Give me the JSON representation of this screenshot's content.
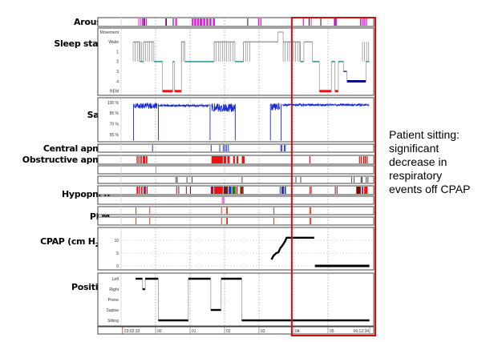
{
  "chart_data": {
    "type": "hypnogram",
    "title": "",
    "time_axis": {
      "unit": "hours after 23:00",
      "range": [
        0.043,
        7.21
      ],
      "ticks": [
        {
          "h": 0.043,
          "label": "23:02:33",
          "color": "#cc0000"
        },
        {
          "h": 1,
          "label": "00"
        },
        {
          "h": 2,
          "label": "01"
        },
        {
          "h": 3,
          "label": "02"
        },
        {
          "h": 4,
          "label": "03"
        },
        {
          "h": 5,
          "label": "04"
        },
        {
          "h": 6,
          "label": "05"
        },
        {
          "h": 7.21,
          "label": "06:12:34"
        }
      ]
    },
    "track_labels": {
      "arousal": "Arousal",
      "sleep_stage": "Sleep stage",
      "sao2": "SaO",
      "sao2_sub": "2",
      "central_apnea": "Central apnea",
      "obstructive_apnea": "Obstructive apnea",
      "hypopnea": "Hypopnea",
      "plm": "PLM",
      "cpap": "CPAP (cm H",
      "cpap_sub": "2",
      "cpap_end": "O)",
      "position": "Position"
    },
    "arousal": {
      "color": "#e020e0",
      "events": [
        [
          0.5,
          0.52
        ],
        [
          0.55,
          0.57
        ],
        [
          0.6,
          0.63
        ],
        [
          0.64,
          0.66
        ],
        [
          0.67,
          0.7
        ],
        [
          0.72,
          0.74
        ],
        [
          1.28,
          1.31
        ],
        [
          1.57,
          1.62
        ],
        [
          2.05,
          2.1
        ],
        [
          2.12,
          2.18
        ],
        [
          2.2,
          2.26
        ],
        [
          2.28,
          2.36
        ],
        [
          2.38,
          2.44
        ],
        [
          2.47,
          2.53
        ],
        [
          2.56,
          2.62
        ],
        [
          2.66,
          2.72
        ],
        [
          3.97,
          4.01
        ],
        [
          4.04,
          4.07
        ],
        [
          5.27,
          5.3
        ],
        [
          5.5,
          5.52
        ],
        [
          6.17,
          6.2
        ],
        [
          6.23,
          6.26
        ],
        [
          6.93,
          6.97
        ],
        [
          7.0,
          7.03
        ],
        [
          7.05,
          7.08
        ],
        [
          7.1,
          7.13
        ]
      ],
      "dark_events": [
        0.65,
        1.3,
        1.5,
        3.66,
        5.44,
        5.78,
        6.2
      ]
    },
    "sleep_stage": {
      "levels": [
        "Movement",
        "Wake",
        "1",
        "2",
        "3",
        "4",
        "REM"
      ],
      "segments": [
        {
          "from": 0.35,
          "to": 0.55,
          "stage": "Wake"
        },
        {
          "from": 0.55,
          "to": 0.65,
          "stage": "2"
        },
        {
          "from": 0.65,
          "to": 0.95,
          "stage": "Wake"
        },
        {
          "from": 0.95,
          "to": 1.05,
          "stage": "2"
        },
        {
          "from": 1.05,
          "to": 1.2,
          "stage": "2"
        },
        {
          "from": 1.2,
          "to": 1.5,
          "stage": "REM"
        },
        {
          "from": 1.5,
          "to": 1.55,
          "stage": "2"
        },
        {
          "from": 1.55,
          "to": 1.75,
          "stage": "REM"
        },
        {
          "from": 1.75,
          "to": 1.85,
          "stage": "Wake"
        },
        {
          "from": 1.85,
          "to": 2.7,
          "stage": "2"
        },
        {
          "from": 2.7,
          "to": 3.3,
          "stage": "Wake"
        },
        {
          "from": 3.3,
          "to": 3.55,
          "stage": "2"
        },
        {
          "from": 3.55,
          "to": 4.55,
          "stage": "Wake"
        },
        {
          "from": 4.55,
          "to": 4.7,
          "stage": "Movement"
        },
        {
          "from": 4.7,
          "to": 5.2,
          "stage": "Wake"
        },
        {
          "from": 5.2,
          "to": 5.3,
          "stage": "2"
        },
        {
          "from": 5.3,
          "to": 5.55,
          "stage": "Wake"
        },
        {
          "from": 5.55,
          "to": 5.75,
          "stage": "2"
        },
        {
          "from": 5.75,
          "to": 6.1,
          "stage": "REM"
        },
        {
          "from": 6.1,
          "to": 6.2,
          "stage": "2"
        },
        {
          "from": 6.2,
          "to": 6.3,
          "stage": "REM"
        },
        {
          "from": 6.3,
          "to": 6.45,
          "stage": "2"
        },
        {
          "from": 6.45,
          "to": 6.55,
          "stage": "3"
        },
        {
          "from": 6.55,
          "to": 7.1,
          "stage": "4"
        },
        {
          "from": 7.1,
          "to": 7.2,
          "stage": "2"
        }
      ],
      "stage_colors": {
        "Movement": "#aaaaaa",
        "Wake": "#999999",
        "1": "#2a6fc0",
        "2": "#158a8a",
        "3": "#1a1aa0",
        "4": "#0a0a80",
        "REM": "#ee1111"
      }
    },
    "sao2": {
      "ticks": [
        "100 %",
        "85 %",
        "70 %",
        "55 %"
      ],
      "tick_values": [
        100,
        85,
        70,
        55
      ],
      "range": [
        50,
        102
      ],
      "color": "#1a2ad0",
      "gaps": [
        [
          0.35,
          0.35
        ],
        [
          1.1,
          1.1
        ],
        [
          2.6,
          2.6
        ],
        [
          3.32,
          3.32
        ],
        [
          3.65,
          3.65
        ]
      ],
      "segments": [
        {
          "from": 0.38,
          "to": 1.05,
          "mean": 96,
          "noise": 4
        },
        {
          "from": 1.1,
          "to": 2.55,
          "mean": 96,
          "noise": 1.5
        },
        {
          "from": 2.62,
          "to": 3.3,
          "mean": 94,
          "noise": 6
        },
        {
          "from": 4.35,
          "to": 4.6,
          "mean": 95,
          "noise": 5
        },
        {
          "from": 4.68,
          "to": 7.2,
          "mean": 97,
          "noise": 1.5
        }
      ],
      "drops": [
        0.36,
        1.08,
        2.58,
        3.31,
        4.33,
        4.64
      ]
    },
    "central_apnea": {
      "color": "#2233cc",
      "events": [
        0.9,
        2.6,
        2.85,
        2.95,
        3.0,
        3.05,
        3.1,
        4.62,
        4.65,
        4.72,
        4.75
      ]
    },
    "obstructive_apnea": {
      "color": "#ee1111",
      "events": [
        [
          0.45,
          0.48
        ],
        [
          0.5,
          0.53
        ],
        [
          0.56,
          0.6
        ],
        [
          0.63,
          0.7
        ],
        [
          0.72,
          0.76
        ],
        [
          2.62,
          2.95
        ],
        [
          2.97,
          3.05
        ],
        [
          3.08,
          3.15
        ],
        [
          3.25,
          3.3
        ],
        [
          3.35,
          3.4
        ],
        [
          3.5,
          3.58
        ],
        [
          5.46,
          5.48
        ],
        [
          6.9,
          6.92
        ],
        [
          6.95,
          6.97
        ],
        [
          7.02,
          7.04
        ],
        [
          7.06,
          7.1
        ],
        [
          7.12,
          7.15
        ]
      ]
    },
    "extra_track_1": {
      "events": [
        1.0
      ]
    },
    "extra_track_2": {
      "color": "#3a1010",
      "events": [
        1.58,
        1.62,
        1.9,
        2.05,
        3.5,
        5.06,
        5.2,
        6.68,
        6.75,
        6.95,
        6.98,
        7.1,
        7.15
      ]
    },
    "hypopnea": {
      "colors": [
        "#ee1111",
        "#a01040",
        "#6a1a1a",
        "#b02060",
        "#2233cc",
        "#1a7a1a",
        "#8a3010",
        "#7a0a0a"
      ],
      "events": [
        {
          "from": 0.45,
          "to": 0.5,
          "c": 0
        },
        {
          "from": 0.52,
          "to": 0.55,
          "c": 1
        },
        {
          "from": 0.58,
          "to": 0.62,
          "c": 0
        },
        {
          "from": 0.65,
          "to": 0.72,
          "c": 3
        },
        {
          "from": 0.74,
          "to": 0.77,
          "c": 0
        },
        {
          "from": 1.6,
          "to": 1.62,
          "c": 2
        },
        {
          "from": 1.66,
          "to": 1.68,
          "c": 2
        },
        {
          "from": 1.88,
          "to": 1.9,
          "c": 2
        },
        {
          "from": 2.0,
          "to": 2.02,
          "c": 2
        },
        {
          "from": 2.6,
          "to": 2.68,
          "c": 1
        },
        {
          "from": 2.7,
          "to": 2.95,
          "c": 0
        },
        {
          "from": 2.97,
          "to": 3.1,
          "c": 2
        },
        {
          "from": 3.12,
          "to": 3.2,
          "c": 4
        },
        {
          "from": 3.22,
          "to": 3.32,
          "c": 5
        },
        {
          "from": 3.34,
          "to": 3.38,
          "c": 0
        },
        {
          "from": 3.45,
          "to": 3.55,
          "c": 6
        },
        {
          "from": 4.6,
          "to": 4.62,
          "c": 4
        },
        {
          "from": 4.65,
          "to": 4.72,
          "c": 4
        },
        {
          "from": 4.74,
          "to": 4.78,
          "c": 4
        },
        {
          "from": 5.46,
          "to": 5.48,
          "c": 0
        },
        {
          "from": 5.5,
          "to": 5.52,
          "c": 7
        },
        {
          "from": 6.2,
          "to": 6.22,
          "c": 2
        },
        {
          "from": 6.25,
          "to": 6.27,
          "c": 2
        },
        {
          "from": 6.82,
          "to": 6.95,
          "c": 7
        },
        {
          "from": 6.98,
          "to": 7.02,
          "c": 1
        },
        {
          "from": 7.05,
          "to": 7.15,
          "c": 0
        }
      ]
    },
    "extra_track_3": {
      "color": "#e080e0",
      "events": [
        [
          2.92,
          3.0
        ]
      ]
    },
    "plm": {
      "color": "#d04010",
      "events": [
        0.42,
        0.82,
        2.9,
        3.05,
        3.07,
        4.42,
        5.46,
        5.49
      ]
    },
    "cpap": {
      "ticks": [
        "10",
        "5",
        "0"
      ],
      "tick_values": [
        10,
        5,
        0
      ],
      "range": [
        -1,
        13
      ],
      "points": [
        [
          4.36,
          2.5
        ],
        [
          4.42,
          4
        ],
        [
          4.5,
          5
        ],
        [
          4.56,
          5.3
        ],
        [
          4.62,
          7
        ],
        [
          4.68,
          8
        ],
        [
          4.75,
          9.5
        ],
        [
          4.8,
          11
        ],
        [
          5.6,
          11
        ]
      ],
      "off": [
        [
          5.62,
          0
        ],
        [
          7.2,
          0
        ]
      ]
    },
    "position": {
      "levels": [
        "Left",
        "Right",
        "Prone",
        "Supine",
        "Sitting"
      ],
      "segments": [
        {
          "from": 0.42,
          "to": 0.62,
          "pos": "Left"
        },
        {
          "from": 0.62,
          "to": 0.7,
          "pos": "Right"
        },
        {
          "from": 0.7,
          "to": 1.08,
          "pos": "Left"
        },
        {
          "from": 1.08,
          "to": 1.95,
          "pos": "Sitting"
        },
        {
          "from": 1.95,
          "to": 2.6,
          "pos": "Left"
        },
        {
          "from": 2.6,
          "to": 2.9,
          "pos": "Supine"
        },
        {
          "from": 2.9,
          "to": 3.5,
          "pos": "Left"
        },
        {
          "from": 3.5,
          "to": 7.2,
          "pos": "Sitting"
        }
      ]
    },
    "highlight": {
      "from_h": 4.95,
      "color": "#cc1111"
    }
  },
  "annotation": {
    "line1": "Patient sitting:",
    "line2": "significant",
    "line3": "decrease in",
    "line4": "respiratory",
    "line5": "events off CPAP"
  }
}
